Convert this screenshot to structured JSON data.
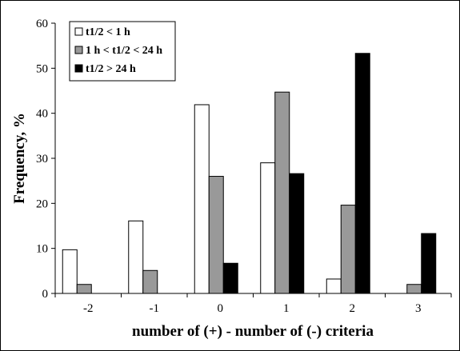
{
  "chart_data": {
    "type": "bar",
    "title": "",
    "xlabel": "number of (+) - number of (-) criteria",
    "ylabel": "Frequency, %",
    "categories": [
      "-2",
      "-1",
      "0",
      "1",
      "2",
      "3"
    ],
    "ylim": [
      0,
      60
    ],
    "yticks": [
      0,
      10,
      20,
      30,
      40,
      50,
      60
    ],
    "grid": false,
    "legend_position": "top-left",
    "series": [
      {
        "name": "t1/2 < 1 h",
        "color": "#ffffff",
        "values": [
          9.7,
          16.1,
          41.9,
          29.0,
          3.2,
          0
        ]
      },
      {
        "name": "1 h < t1/2 < 24 h",
        "color": "#999999",
        "values": [
          2.0,
          5.1,
          26.0,
          44.7,
          19.6,
          2.0
        ]
      },
      {
        "name": "t1/2 > 24 h",
        "color": "#000000",
        "values": [
          0,
          0,
          6.7,
          26.6,
          53.3,
          13.3
        ]
      }
    ]
  }
}
